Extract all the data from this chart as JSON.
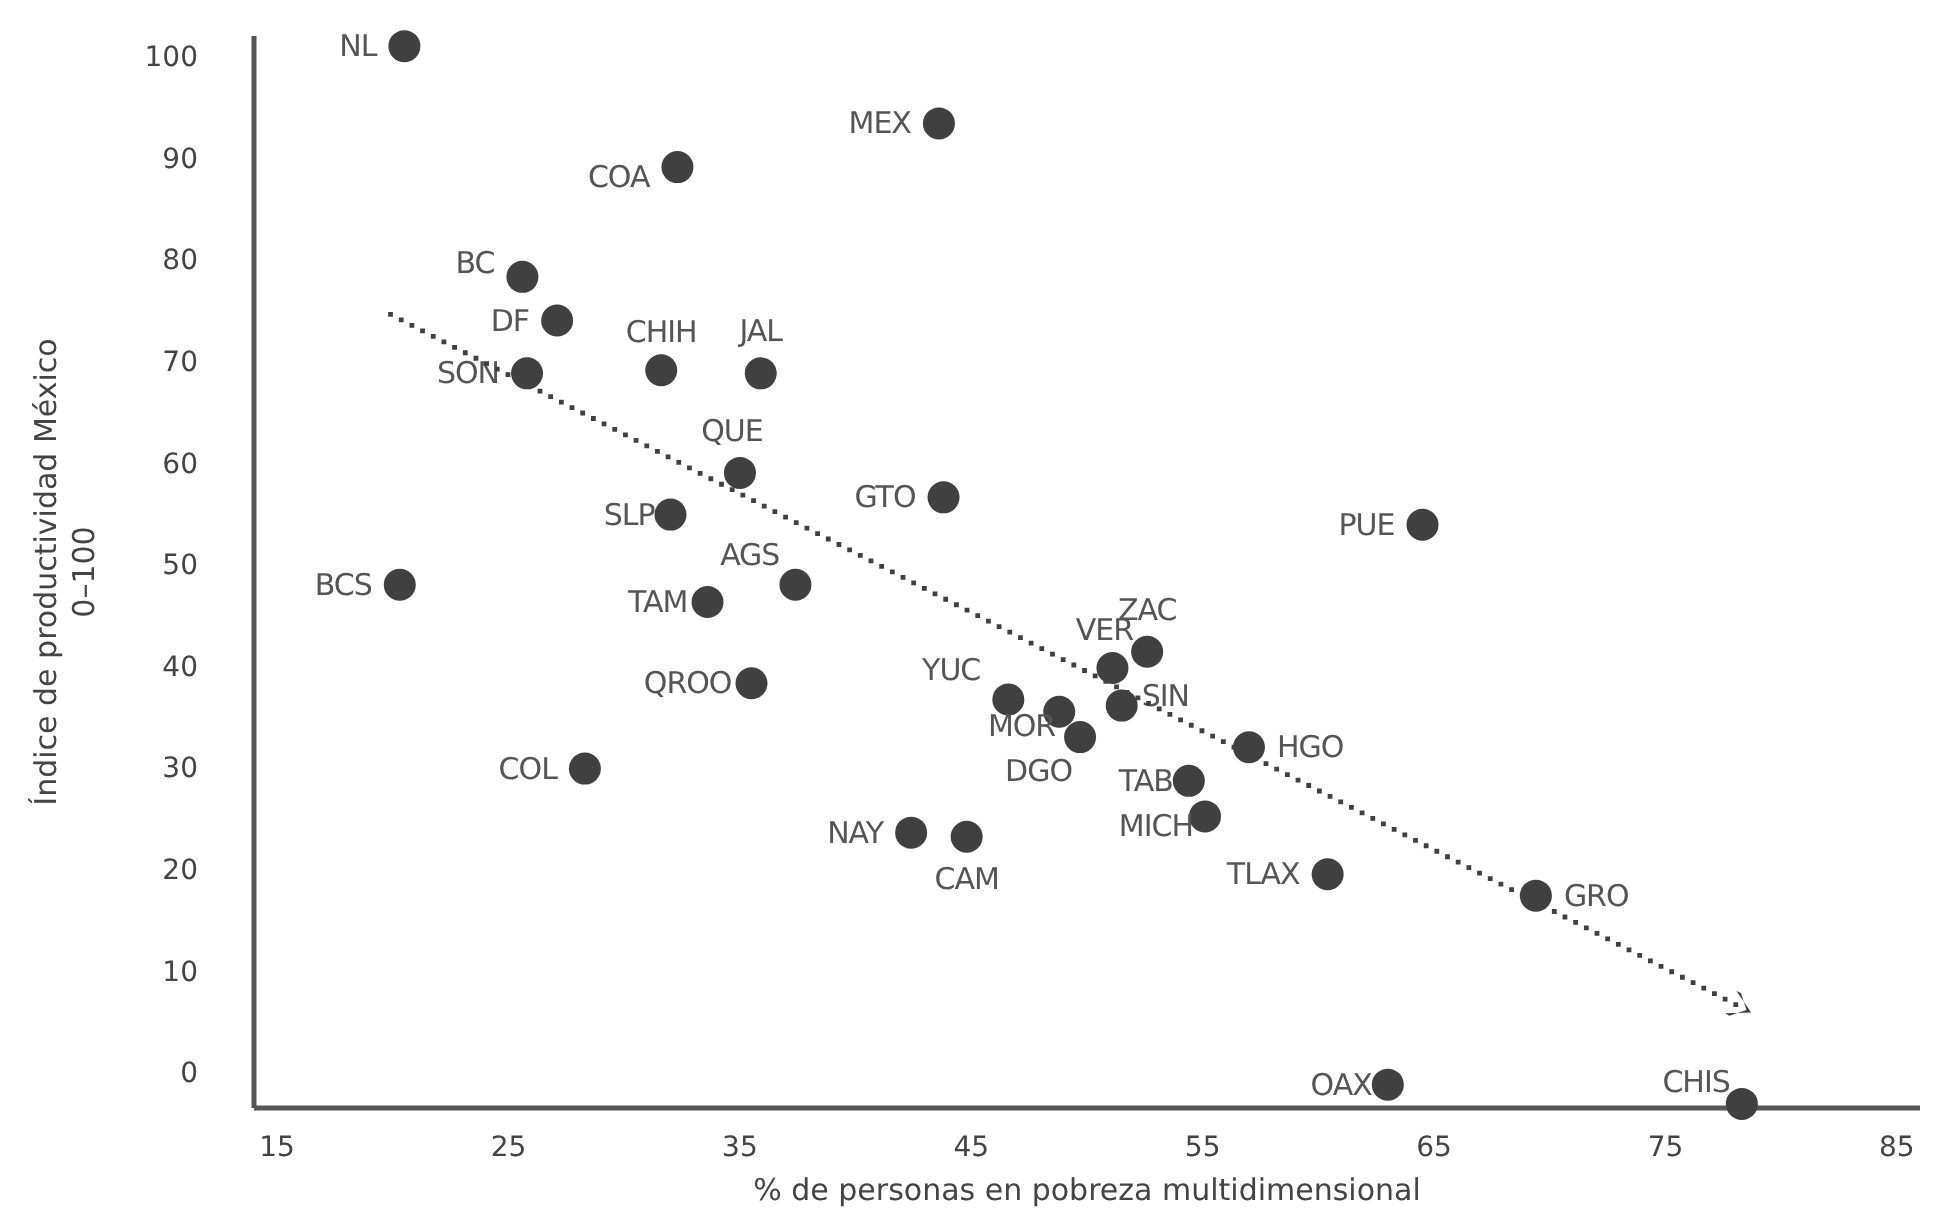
{
  "chart_data": {
    "type": "scatter",
    "xlabel": "% de personas en pobreza multidimensional",
    "ylabel": "Índice de productividad México\n0–100",
    "xlim": [
      14,
      86
    ],
    "ylim": [
      -3.5,
      102
    ],
    "xticks": [
      15,
      25,
      35,
      45,
      55,
      65,
      75,
      85
    ],
    "yticks": [
      0,
      10,
      20,
      30,
      40,
      50,
      60,
      70,
      80,
      90,
      100
    ],
    "grid": false,
    "series": [
      {
        "color": "#404040",
        "marker": "circle",
        "x": [
          20.5,
          43.6,
          32.3,
          25.6,
          27.1,
          31.6,
          35.9,
          25.8,
          35,
          32,
          43.8,
          64.5,
          20.3,
          33.6,
          37.4,
          35.5,
          28.3,
          46.6,
          48.8,
          49.7,
          51.1,
          52.6,
          51.5,
          57,
          54.4,
          55.1,
          42.4,
          44.8,
          60.4,
          69.4,
          63,
          78.3
        ],
        "values": [
          101,
          93.4,
          89.1,
          78.3,
          74,
          69.1,
          68.8,
          68.8,
          59,
          54.9,
          56.6,
          53.9,
          48,
          46.3,
          48,
          38.3,
          29.9,
          36.7,
          35.5,
          33,
          39.8,
          41.4,
          36.1,
          32,
          28.7,
          25.2,
          23.6,
          23.2,
          19.5,
          17.4,
          -1.2,
          -3.1
        ]
      }
    ],
    "annotations": [
      {
        "text": "NL",
        "x": 20.5,
        "y": 101
      },
      {
        "text": "MEX",
        "x": 43.6,
        "y": 93.4
      },
      {
        "text": "COA",
        "x": 32.3,
        "y": 89.1
      },
      {
        "text": "BC",
        "x": 25.6,
        "y": 78.3
      },
      {
        "text": "DF",
        "x": 27.1,
        "y": 74
      },
      {
        "text": "CHIH",
        "x": 31.6,
        "y": 69.1
      },
      {
        "text": "JAL",
        "x": 35.9,
        "y": 68.8
      },
      {
        "text": "SON",
        "x": 25.8,
        "y": 68.8
      },
      {
        "text": "QUE",
        "x": 35,
        "y": 59
      },
      {
        "text": "SLP",
        "x": 32,
        "y": 54.9
      },
      {
        "text": "GTO",
        "x": 43.8,
        "y": 56.6
      },
      {
        "text": "PUE",
        "x": 64.5,
        "y": 53.9
      },
      {
        "text": "BCS",
        "x": 20.3,
        "y": 48
      },
      {
        "text": "TAM",
        "x": 33.6,
        "y": 46.3
      },
      {
        "text": "AGS",
        "x": 37.4,
        "y": 48
      },
      {
        "text": "QROO",
        "x": 35.5,
        "y": 38.3
      },
      {
        "text": "COL",
        "x": 28.3,
        "y": 29.9
      },
      {
        "text": "YUC",
        "x": 46.6,
        "y": 36.7
      },
      {
        "text": "MOR",
        "x": 48.8,
        "y": 35.5
      },
      {
        "text": "DGO",
        "x": 49.7,
        "y": 33
      },
      {
        "text": "VER",
        "x": 51.1,
        "y": 39.8
      },
      {
        "text": "ZAC",
        "x": 52.6,
        "y": 41.4
      },
      {
        "text": "SIN",
        "x": 51.5,
        "y": 36.1
      },
      {
        "text": "HGO",
        "x": 57,
        "y": 32
      },
      {
        "text": "TAB",
        "x": 54.4,
        "y": 28.7
      },
      {
        "text": "MICH",
        "x": 55.1,
        "y": 25.2
      },
      {
        "text": "NAY",
        "x": 42.4,
        "y": 23.6
      },
      {
        "text": "CAM",
        "x": 44.8,
        "y": 23.2
      },
      {
        "text": "TLAX",
        "x": 60.4,
        "y": 19.5
      },
      {
        "text": "GRO",
        "x": 69.4,
        "y": 17.4
      },
      {
        "text": "OAX",
        "x": 63,
        "y": -1.2
      },
      {
        "text": "CHIS",
        "x": 78.3,
        "y": -3.1
      }
    ]
  }
}
